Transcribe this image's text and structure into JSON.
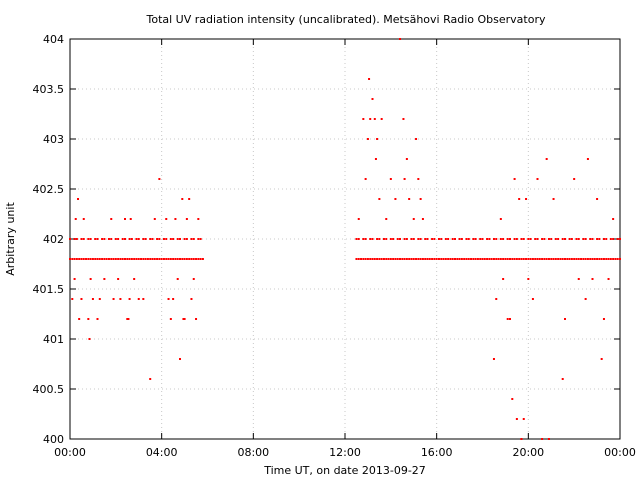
{
  "chart_data": {
    "type": "scatter",
    "title": "Total UV radiation intensity (uncalibrated). Metsähovi Radio Observatory",
    "xlabel": "Time UT, on date 2013-09-27",
    "ylabel": "Arbitrary unit",
    "x_unit": "hours UT",
    "xlim": [
      0,
      24
    ],
    "ylim": [
      400,
      404
    ],
    "x_ticks": [
      0,
      4,
      8,
      12,
      16,
      20,
      24
    ],
    "x_tick_labels": [
      "00:00",
      "04:00",
      "08:00",
      "12:00",
      "16:00",
      "20:00",
      "00:00"
    ],
    "y_ticks": [
      400,
      400.5,
      401,
      401.5,
      402,
      402.5,
      403,
      403.5,
      404
    ],
    "y_tick_labels": [
      "400",
      "400.5",
      "401",
      "401.5",
      "402",
      "402.5",
      "403",
      "403.5",
      "404"
    ],
    "grid": true,
    "marker_color": "#ff0000",
    "segments": [
      {
        "name": "",
        "x_start": 0.0,
        "x_end": 5.8,
        "step": 0.1
      },
      {
        "name": "",
        "x_start": 12.5,
        "x_end": 24.0,
        "step": 0.1
      }
    ],
    "series": [
      {
        "name": "",
        "points": [
          [
            0.1,
            401.4
          ],
          [
            0.2,
            401.6
          ],
          [
            0.25,
            402.2
          ],
          [
            0.35,
            402.4
          ],
          [
            0.4,
            401.2
          ],
          [
            0.5,
            401.4
          ],
          [
            0.6,
            402.2
          ],
          [
            0.8,
            401.2
          ],
          [
            0.85,
            401.0
          ],
          [
            0.9,
            401.6
          ],
          [
            1.0,
            401.4
          ],
          [
            1.2,
            401.2
          ],
          [
            1.3,
            401.4
          ],
          [
            1.5,
            401.6
          ],
          [
            1.8,
            402.2
          ],
          [
            1.9,
            401.4
          ],
          [
            2.1,
            401.6
          ],
          [
            2.2,
            401.4
          ],
          [
            2.4,
            402.2
          ],
          [
            2.5,
            401.2
          ],
          [
            2.55,
            401.2
          ],
          [
            2.6,
            401.4
          ],
          [
            2.65,
            402.2
          ],
          [
            2.8,
            401.6
          ],
          [
            3.0,
            401.4
          ],
          [
            3.2,
            401.4
          ],
          [
            3.5,
            400.6
          ],
          [
            3.7,
            402.2
          ],
          [
            3.9,
            402.6
          ],
          [
            4.2,
            402.2
          ],
          [
            4.3,
            401.4
          ],
          [
            4.4,
            401.2
          ],
          [
            4.5,
            401.4
          ],
          [
            4.6,
            402.2
          ],
          [
            4.7,
            401.6
          ],
          [
            4.8,
            400.8
          ],
          [
            4.9,
            402.4
          ],
          [
            4.95,
            401.2
          ],
          [
            5.0,
            401.2
          ],
          [
            5.1,
            402.2
          ],
          [
            5.2,
            402.4
          ],
          [
            5.3,
            401.4
          ],
          [
            5.4,
            401.6
          ],
          [
            5.5,
            401.2
          ],
          [
            5.6,
            402.2
          ],
          [
            12.6,
            402.2
          ],
          [
            12.8,
            403.2
          ],
          [
            12.9,
            402.6
          ],
          [
            13.0,
            403.0
          ],
          [
            13.05,
            403.6
          ],
          [
            13.1,
            403.2
          ],
          [
            13.2,
            403.4
          ],
          [
            13.3,
            403.2
          ],
          [
            13.35,
            402.8
          ],
          [
            13.4,
            403.0
          ],
          [
            13.5,
            402.4
          ],
          [
            13.6,
            403.2
          ],
          [
            13.8,
            402.2
          ],
          [
            14.0,
            402.6
          ],
          [
            14.2,
            402.4
          ],
          [
            14.4,
            404.0
          ],
          [
            14.55,
            403.2
          ],
          [
            14.6,
            402.6
          ],
          [
            14.7,
            402.8
          ],
          [
            14.8,
            402.4
          ],
          [
            15.0,
            402.2
          ],
          [
            15.1,
            403.0
          ],
          [
            15.2,
            402.6
          ],
          [
            15.3,
            402.4
          ],
          [
            15.4,
            402.2
          ],
          [
            18.5,
            400.8
          ],
          [
            18.6,
            401.4
          ],
          [
            18.8,
            402.2
          ],
          [
            18.9,
            401.6
          ],
          [
            19.1,
            401.2
          ],
          [
            19.2,
            401.2
          ],
          [
            19.3,
            400.4
          ],
          [
            19.4,
            402.6
          ],
          [
            19.5,
            400.2
          ],
          [
            19.6,
            402.4
          ],
          [
            19.7,
            400.0
          ],
          [
            19.8,
            400.2
          ],
          [
            19.9,
            402.4
          ],
          [
            20.0,
            401.6
          ],
          [
            20.2,
            401.4
          ],
          [
            20.4,
            402.6
          ],
          [
            20.6,
            400.0
          ],
          [
            20.8,
            402.8
          ],
          [
            20.9,
            400.0
          ],
          [
            21.1,
            402.4
          ],
          [
            21.5,
            400.6
          ],
          [
            21.6,
            401.2
          ],
          [
            22.0,
            402.6
          ],
          [
            22.2,
            401.6
          ],
          [
            22.5,
            401.4
          ],
          [
            22.6,
            402.8
          ],
          [
            22.8,
            401.6
          ],
          [
            23.0,
            402.4
          ],
          [
            23.2,
            400.8
          ],
          [
            23.3,
            401.2
          ],
          [
            23.5,
            401.6
          ],
          [
            23.7,
            402.2
          ]
        ]
      }
    ]
  }
}
